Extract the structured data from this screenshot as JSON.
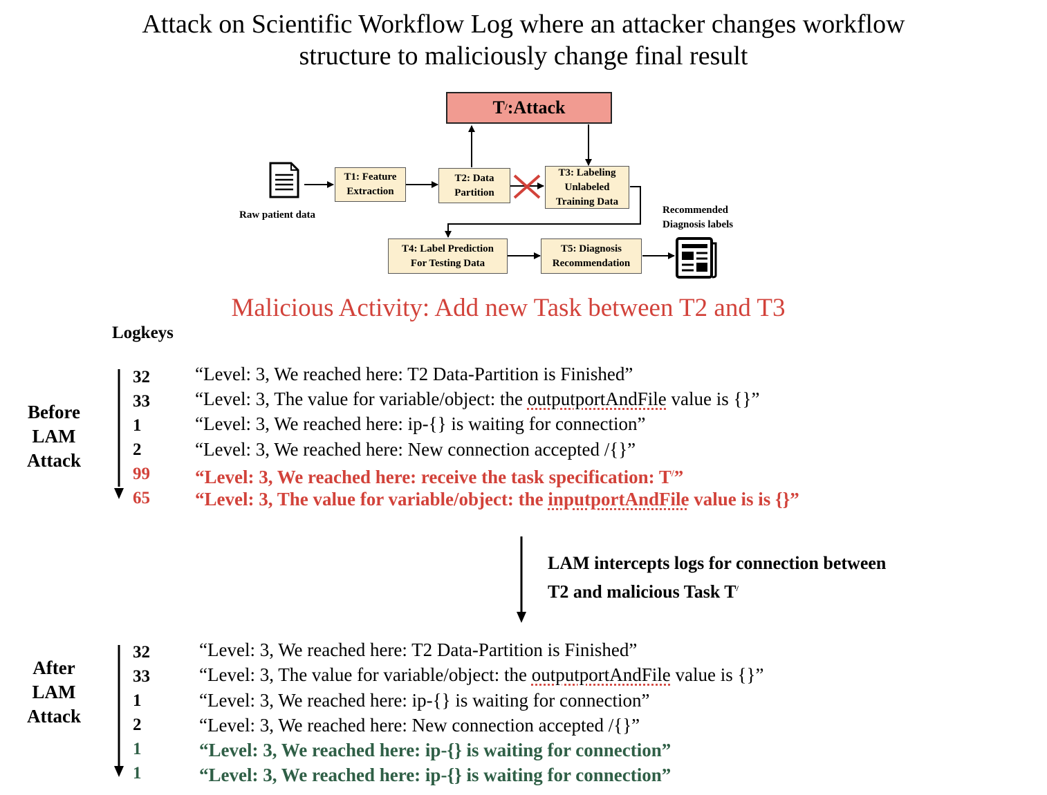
{
  "title": {
    "line1": "Attack on Scientific Workflow Log where an attacker changes workflow",
    "line2": "structure to maliciously change final result"
  },
  "diagram": {
    "attack_box": {
      "label_main": "T",
      "label_sup": "/",
      "label_rest": ":Attack"
    },
    "raw_data_label": "Raw patient data",
    "t1": {
      "line1": "T1: Feature",
      "line2": "Extraction"
    },
    "t2": {
      "line1": "T2: Data",
      "line2": "Partition"
    },
    "t3": {
      "line1": "T3: Labeling",
      "line2": "Unlabeled",
      "line3": "Training Data"
    },
    "t4": {
      "line1": "T4: Label Prediction",
      "line2": "For Testing Data"
    },
    "t5": {
      "line1": "T5: Diagnosis",
      "line2": "Recommendation"
    },
    "recommended_label": {
      "line1": "Recommended",
      "line2": "Diagnosis labels"
    },
    "colors": {
      "attack_fill": "#f19b91",
      "task_fill": "#fcefcf",
      "cross": "#d2423a"
    }
  },
  "malicious_activity": "Malicious Activity: Add new Task between T2 and T3",
  "logkeys_label": "Logkeys",
  "before": {
    "label": {
      "line1": "Before",
      "line2": "LAM",
      "line3": "Attack"
    },
    "rows": [
      {
        "key": "32",
        "pre": "“Level: 3, We reached here: T2 Data-Partition is Finished”",
        "squig": "",
        "post": ""
      },
      {
        "key": "33",
        "pre": "“Level: 3, The value for variable/object: the ",
        "squig": "outputportAndFile",
        "post": " value is {}”"
      },
      {
        "key": "1",
        "pre": "“Level: 3, We reached here:  ip-{} is waiting for connection”",
        "squig": "",
        "post": ""
      },
      {
        "key": "2",
        "pre": "“Level: 3, We reached here:  New connection accepted /{}”",
        "squig": "",
        "post": ""
      },
      {
        "key": "99",
        "pre": "“Level: 3, We reached here:  receive the task specification: T",
        "sup": "/",
        "post": "”",
        "style": "red"
      },
      {
        "key": "65",
        "pre": "“Level: 3, The value for variable/object: the ",
        "squig": "inputportAndFile",
        "post": " value is  is {}”",
        "style": "red"
      }
    ]
  },
  "lam_note": {
    "line1": "LAM intercepts logs for connection between",
    "line2_main": "T2 and malicious Task T",
    "line2_sup": "/"
  },
  "after": {
    "label": {
      "line1": "After",
      "line2": "LAM",
      "line3": "Attack"
    },
    "rows": [
      {
        "key": "32",
        "pre": "“Level: 3, We reached here: T2 Data-Partition is Finished”",
        "squig": "",
        "post": ""
      },
      {
        "key": "33",
        "pre": "“Level: 3, The value for variable/object: the ",
        "squig": "outputportAndFile",
        "post": " value is {}”"
      },
      {
        "key": "1",
        "pre": "“Level: 3, We reached here:  ip-{} is waiting for connection”",
        "squig": "",
        "post": ""
      },
      {
        "key": "2",
        "pre": "“Level: 3, We reached here:  New connection accepted /{}”",
        "squig": "",
        "post": ""
      },
      {
        "key": "1",
        "pre": "“Level: 3, We reached here:  ip-{} is waiting for connection”",
        "squig": "",
        "post": "",
        "style": "green"
      },
      {
        "key": "1",
        "pre": "“Level: 3, We reached here:  ip-{} is waiting for connection”",
        "squig": "",
        "post": "",
        "style": "green"
      }
    ]
  }
}
